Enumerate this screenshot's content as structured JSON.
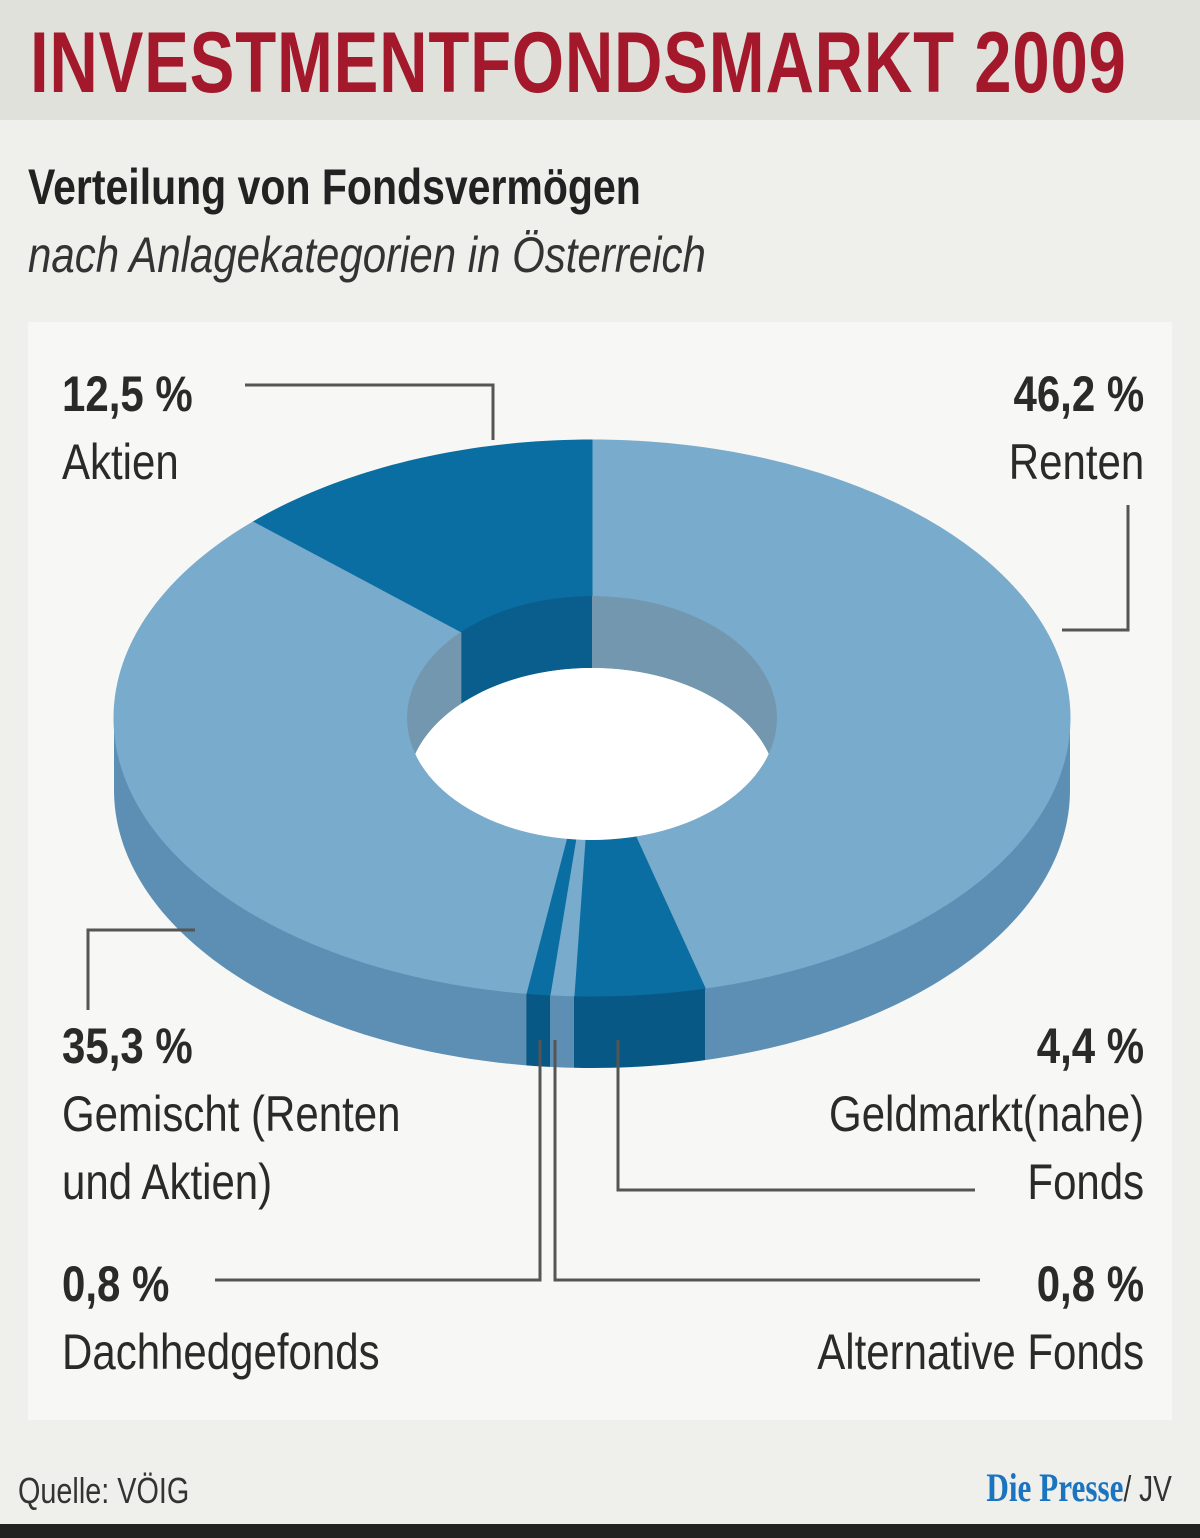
{
  "header": {
    "title": "INVESTMENTFONDSMARKT 2009"
  },
  "subtitle": "Verteilung von Fondsvermögen",
  "subtitle2": "nach Anlagekategorien in Österreich",
  "footer": {
    "source": "Quelle: VÖIG",
    "brand": "Die Presse",
    "author": "/ JV"
  },
  "colors": {
    "light_top": "#79abcc",
    "light_side": "#5c8fb3",
    "dark_top": "#0b6ea2",
    "dark_side": "#075885",
    "title": "#a3182b"
  },
  "chart_data": {
    "type": "pie",
    "style": "3d-donut",
    "title": "Verteilung von Fondsvermögen",
    "unit": "%",
    "slices": [
      {
        "label": "Renten",
        "value": 46.2,
        "value_label": "46,2 %",
        "tone": "light"
      },
      {
        "label": "Geldmarkt(nahe) Fonds",
        "line1": "Geldmarkt(nahe)",
        "line2": "Fonds",
        "value": 4.4,
        "value_label": "4,4 %",
        "tone": "dark"
      },
      {
        "label": "Alternative Fonds",
        "value": 0.8,
        "value_label": "0,8 %",
        "tone": "light"
      },
      {
        "label": "Dachhedgefonds",
        "value": 0.8,
        "value_label": "0,8 %",
        "tone": "dark"
      },
      {
        "label": "Gemischt (Renten und Aktien)",
        "line1": "Gemischt (Renten",
        "line2": "und Aktien)",
        "value": 35.3,
        "value_label": "35,3 %",
        "tone": "light"
      },
      {
        "label": "Aktien",
        "value": 12.5,
        "value_label": "12,5 %",
        "tone": "dark"
      }
    ]
  }
}
